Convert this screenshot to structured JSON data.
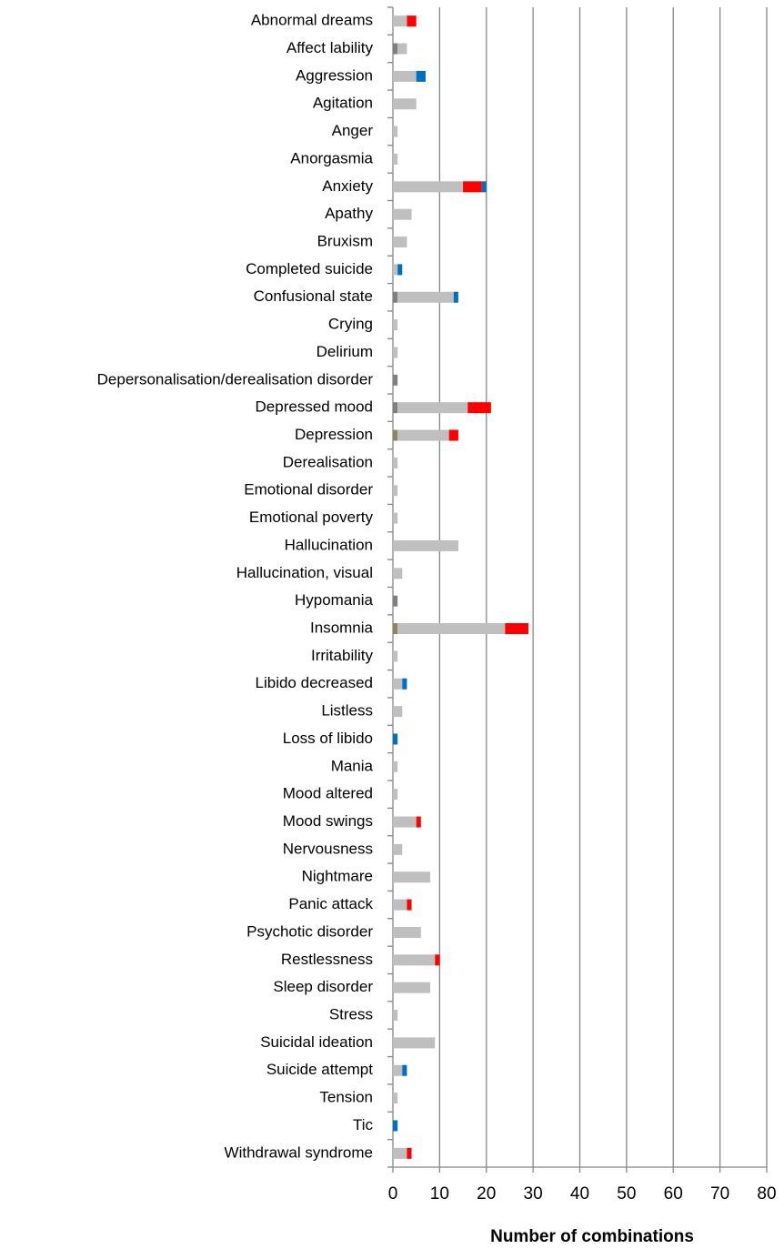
{
  "chart_data": {
    "type": "bar",
    "orientation": "horizontal",
    "stacked": true,
    "x_label": "Number of combinations",
    "categories": [
      "Abnormal dreams",
      "Affect lability",
      "Aggression",
      "Agitation",
      "Anger",
      "Anorgasmia",
      "Anxiety",
      "Apathy",
      "Bruxism",
      "Completed suicide",
      "Confusional state",
      "Crying",
      "Delirium",
      "Depersonalisation/derealisation disorder",
      "Depressed mood",
      "Depression",
      "Derealisation",
      "Emotional disorder",
      "Emotional poverty",
      "Hallucination",
      "Hallucination, visual",
      "Hypomania",
      "Insomnia",
      "Irritability",
      "Libido decreased",
      "Listless",
      "Loss of libido",
      "Mania",
      "Mood altered",
      "Mood swings",
      "Nervousness",
      "Nightmare",
      "Panic attack",
      "Psychotic disorder",
      "Restlessness",
      "Sleep disorder",
      "Stress",
      "Suicidal ideation",
      "Suicide attempt",
      "Tension",
      "Tic",
      "Withdrawal syndrome"
    ],
    "series": [
      {
        "color": "#7f7f7f",
        "values": [
          0,
          1,
          0,
          0,
          0,
          0,
          0,
          0,
          0,
          0,
          1,
          0,
          0,
          1,
          1,
          0,
          0,
          0,
          0,
          0,
          0,
          1,
          0,
          0,
          0,
          0,
          0,
          0,
          0,
          0,
          0,
          0,
          0,
          0,
          0,
          0,
          0,
          0,
          0,
          0,
          0,
          0
        ]
      },
      {
        "color": "#8c8560",
        "values": [
          0,
          0,
          0,
          0,
          0,
          0,
          0,
          0,
          0,
          0,
          0,
          0,
          0,
          0,
          0,
          1,
          0,
          0,
          0,
          0,
          0,
          0,
          1,
          0,
          0,
          0,
          0,
          0,
          0,
          0,
          0,
          0,
          0,
          0,
          0,
          0,
          0,
          0,
          0,
          0,
          0,
          0
        ]
      },
      {
        "color": "#bfbfbf",
        "values": [
          3,
          2,
          5,
          5,
          1,
          1,
          15,
          4,
          3,
          1,
          12,
          1,
          1,
          0,
          15,
          11,
          1,
          1,
          1,
          14,
          2,
          0,
          23,
          1,
          2,
          2,
          0,
          1,
          1,
          5,
          2,
          8,
          3,
          6,
          9,
          8,
          1,
          9,
          2,
          1,
          0,
          3
        ]
      },
      {
        "color": "#ff0000",
        "values": [
          2,
          0,
          0,
          0,
          0,
          0,
          4,
          0,
          0,
          0,
          0,
          0,
          0,
          0,
          5,
          2,
          0,
          0,
          0,
          0,
          0,
          0,
          5,
          0,
          0,
          0,
          0,
          0,
          0,
          1,
          0,
          0,
          1,
          0,
          1,
          0,
          0,
          0,
          0,
          0,
          0,
          1
        ]
      },
      {
        "color": "#0070c0",
        "values": [
          0,
          0,
          2,
          0,
          0,
          0,
          1,
          0,
          0,
          1,
          1,
          0,
          0,
          0,
          0,
          0,
          0,
          0,
          0,
          0,
          0,
          0,
          0,
          0,
          1,
          0,
          1,
          0,
          0,
          0,
          0,
          0,
          0,
          0,
          0,
          0,
          0,
          0,
          1,
          0,
          1,
          0
        ]
      }
    ],
    "xlim": [
      0,
      80
    ],
    "xticks": [
      0,
      10,
      20,
      30,
      40,
      50,
      60,
      70,
      80
    ],
    "grid": true
  }
}
